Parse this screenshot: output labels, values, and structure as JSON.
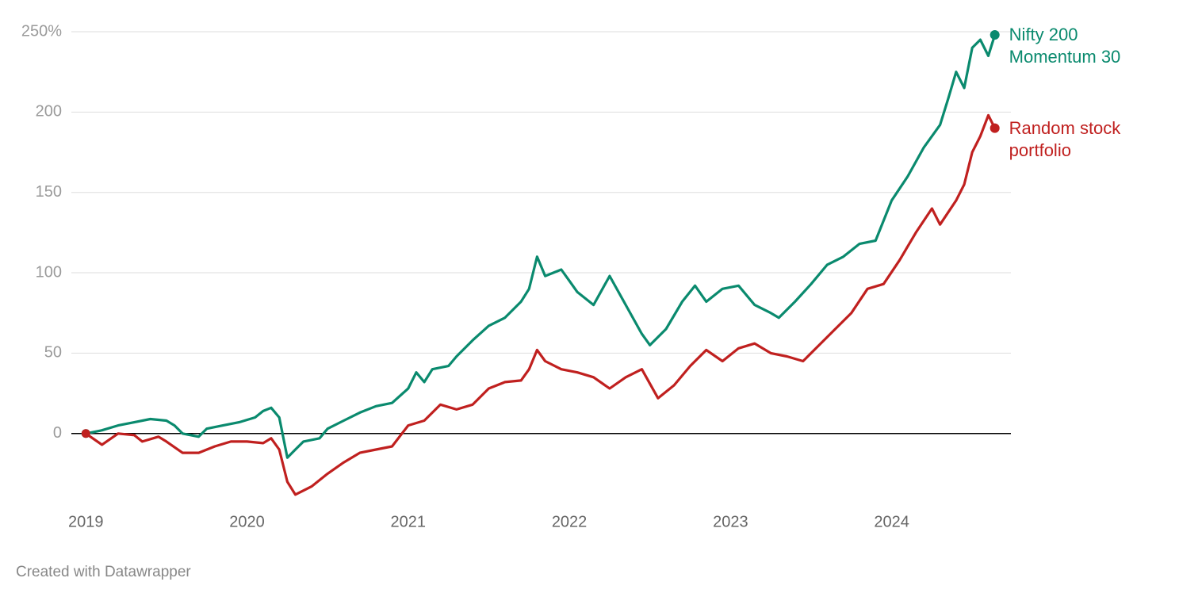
{
  "chart_data": {
    "type": "line",
    "credit": "Created with Datawrapper",
    "xlim": [
      2018.91,
      2024.74
    ],
    "xticks": [
      2019,
      2020,
      2021,
      2022,
      2023,
      2024
    ],
    "ylim": [
      -46,
      250
    ],
    "yticks": [
      0,
      50,
      100,
      150,
      200,
      {
        "value": 250,
        "label": "250%"
      }
    ],
    "grid": true,
    "series": [
      {
        "name": "Nifty 200 Momentum 30",
        "color": "#0a8a6e",
        "x": [
          2019.0,
          2019.1,
          2019.2,
          2019.3,
          2019.4,
          2019.5,
          2019.55,
          2019.6,
          2019.7,
          2019.75,
          2019.85,
          2019.95,
          2020.05,
          2020.1,
          2020.15,
          2020.2,
          2020.25,
          2020.3,
          2020.35,
          2020.45,
          2020.5,
          2020.6,
          2020.7,
          2020.8,
          2020.9,
          2021.0,
          2021.05,
          2021.1,
          2021.15,
          2021.25,
          2021.3,
          2021.4,
          2021.5,
          2021.6,
          2021.7,
          2021.75,
          2021.8,
          2021.85,
          2021.95,
          2022.0,
          2022.05,
          2022.15,
          2022.25,
          2022.35,
          2022.45,
          2022.5,
          2022.6,
          2022.7,
          2022.78,
          2022.85,
          2022.95,
          2023.05,
          2023.15,
          2023.25,
          2023.3,
          2023.4,
          2023.5,
          2023.6,
          2023.7,
          2023.8,
          2023.9,
          2024.0,
          2024.1,
          2024.2,
          2024.3,
          2024.35,
          2024.4,
          2024.45,
          2024.5,
          2024.55,
          2024.6,
          2024.64
        ],
        "values": [
          0,
          2,
          5,
          7,
          9,
          8,
          5,
          0,
          -2,
          3,
          5,
          7,
          10,
          14,
          16,
          10,
          -15,
          -10,
          -5,
          -3,
          3,
          8,
          13,
          17,
          19,
          28,
          38,
          32,
          40,
          42,
          48,
          58,
          67,
          72,
          82,
          90,
          110,
          98,
          102,
          95,
          88,
          80,
          98,
          80,
          62,
          55,
          65,
          82,
          92,
          82,
          90,
          92,
          80,
          75,
          72,
          82,
          93,
          105,
          110,
          118,
          120,
          145,
          160,
          178,
          192,
          208,
          225,
          215,
          240,
          245,
          235,
          248
        ]
      },
      {
        "name": "Random stock portfolio",
        "color": "#c0201f",
        "x": [
          2019.0,
          2019.1,
          2019.2,
          2019.3,
          2019.35,
          2019.45,
          2019.5,
          2019.6,
          2019.7,
          2019.8,
          2019.9,
          2020.0,
          2020.1,
          2020.15,
          2020.2,
          2020.25,
          2020.3,
          2020.4,
          2020.5,
          2020.6,
          2020.7,
          2020.8,
          2020.9,
          2021.0,
          2021.1,
          2021.2,
          2021.3,
          2021.4,
          2021.5,
          2021.6,
          2021.7,
          2021.75,
          2021.8,
          2021.85,
          2021.95,
          2022.05,
          2022.15,
          2022.25,
          2022.35,
          2022.45,
          2022.55,
          2022.65,
          2022.75,
          2022.85,
          2022.95,
          2023.05,
          2023.15,
          2023.25,
          2023.35,
          2023.45,
          2023.55,
          2023.65,
          2023.75,
          2023.85,
          2023.95,
          2024.05,
          2024.15,
          2024.25,
          2024.3,
          2024.4,
          2024.45,
          2024.5,
          2024.55,
          2024.6,
          2024.64
        ],
        "values": [
          0,
          -7,
          0,
          -1,
          -5,
          -2,
          -5,
          -12,
          -12,
          -8,
          -5,
          -5,
          -6,
          -3,
          -10,
          -30,
          -38,
          -33,
          -25,
          -18,
          -12,
          -10,
          -8,
          5,
          8,
          18,
          15,
          18,
          28,
          32,
          33,
          40,
          52,
          45,
          40,
          38,
          35,
          28,
          35,
          40,
          22,
          30,
          42,
          52,
          45,
          53,
          56,
          50,
          48,
          45,
          55,
          65,
          75,
          90,
          93,
          108,
          125,
          140,
          130,
          145,
          155,
          175,
          185,
          198,
          190
        ]
      }
    ]
  }
}
